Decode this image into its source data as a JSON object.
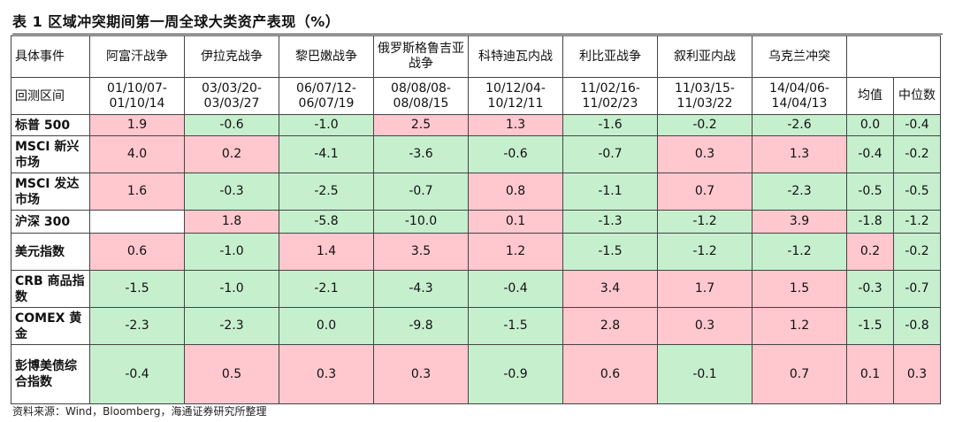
{
  "title": "表 1 区域冲突期间第一周全球大类资产表现（%）",
  "header": {
    "event_label": "具体事件",
    "period_label": "回测区间",
    "events": [
      "阿富汗战争",
      "伊拉克战争",
      "黎巴嫩战争",
      "俄罗斯格鲁吉亚战争",
      "科特迪瓦内战",
      "利比亚战争",
      "叙利亚内战",
      "乌克兰冲突"
    ],
    "periods": [
      [
        "01/10/07-",
        "01/10/14"
      ],
      [
        "03/03/20-",
        "03/03/27"
      ],
      [
        "06/07/12-",
        "06/07/19"
      ],
      [
        "08/08/08-",
        "08/08/15"
      ],
      [
        "10/12/04-",
        "10/12/11"
      ],
      [
        "11/02/16-",
        "11/02/23"
      ],
      [
        "11/03/15-",
        "11/03/22"
      ],
      [
        "14/04/06-",
        "14/04/13"
      ]
    ],
    "mean_label": "均值",
    "median_label": "中位数"
  },
  "rows": [
    {
      "label": "标普 500",
      "values": [
        "1.9",
        "-0.6",
        "-1.0",
        "2.5",
        "1.3",
        "-1.6",
        "-0.2",
        "-2.6",
        "0.0",
        "-0.4"
      ]
    },
    {
      "label": "MSCI 新兴市场",
      "values": [
        "4.0",
        "0.2",
        "-4.1",
        "-3.6",
        "-0.6",
        "-0.7",
        "0.3",
        "1.3",
        "-0.4",
        "-0.2"
      ]
    },
    {
      "label": "MSCI 发达市场",
      "values": [
        "1.6",
        "-0.3",
        "-2.5",
        "-0.7",
        "0.8",
        "-1.1",
        "0.7",
        "-2.3",
        "-0.5",
        "-0.5"
      ]
    },
    {
      "label": "沪深 300",
      "values": [
        "",
        "1.8",
        "-5.8",
        "-10.0",
        "0.1",
        "-1.3",
        "-1.2",
        "3.9",
        "-1.8",
        "-1.2"
      ]
    },
    {
      "label": "美元指数",
      "values": [
        "0.6",
        "-1.0",
        "1.4",
        "3.5",
        "1.2",
        "-1.5",
        "-1.2",
        "-1.2",
        "0.2",
        "-0.2"
      ]
    },
    {
      "label": "CRB 商品指数",
      "values": [
        "-1.5",
        "-1.0",
        "-2.1",
        "-4.3",
        "-0.4",
        "3.4",
        "1.7",
        "1.5",
        "-0.3",
        "-0.7"
      ]
    },
    {
      "label": "COMEX 黄金",
      "values": [
        "-2.3",
        "-2.3",
        "0.0",
        "-9.8",
        "-1.5",
        "2.8",
        "0.3",
        "1.2",
        "-1.5",
        "-0.8"
      ]
    },
    {
      "label": "彭博美债综合指数",
      "values": [
        "-0.4",
        "0.5",
        "0.3",
        "0.3",
        "-0.9",
        "0.6",
        "-0.1",
        "0.7",
        "0.1",
        "0.3"
      ]
    }
  ],
  "colors": {
    "positive": "#ffc7ce",
    "negative": "#c6efce"
  },
  "source": "资料来源：Wind，Bloomberg，海通证券研究所整理"
}
